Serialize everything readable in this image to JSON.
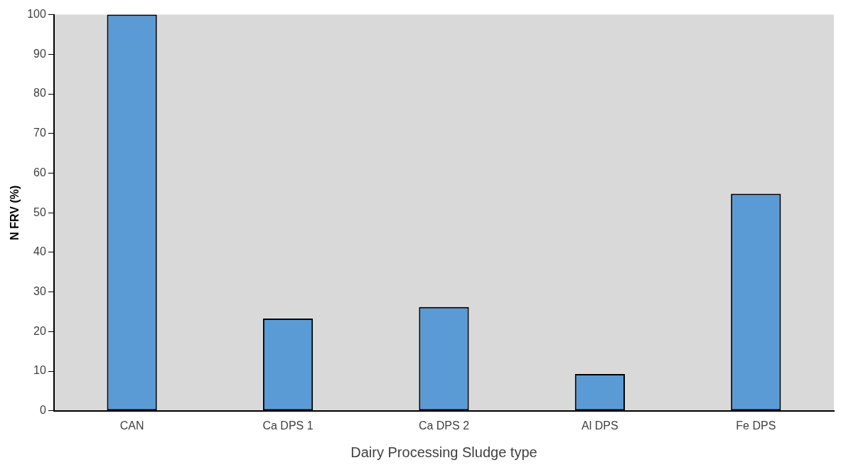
{
  "chart_data": {
    "type": "bar",
    "xlabel": "Dairy Processing Sludge type",
    "ylabel": "N FRV (%)",
    "categories": [
      "CAN",
      "Ca DPS 1",
      "Ca DPS 2",
      "Al DPS",
      "Fe DPS"
    ],
    "values": [
      100,
      23.3,
      26.2,
      9.3,
      54.8
    ],
    "color": "#5b9bd5",
    "ylim": [
      0,
      100
    ],
    "yticks": [
      0,
      10,
      20,
      30,
      40,
      50,
      60,
      70,
      80,
      90,
      100
    ],
    "grid": false,
    "legend": false
  }
}
